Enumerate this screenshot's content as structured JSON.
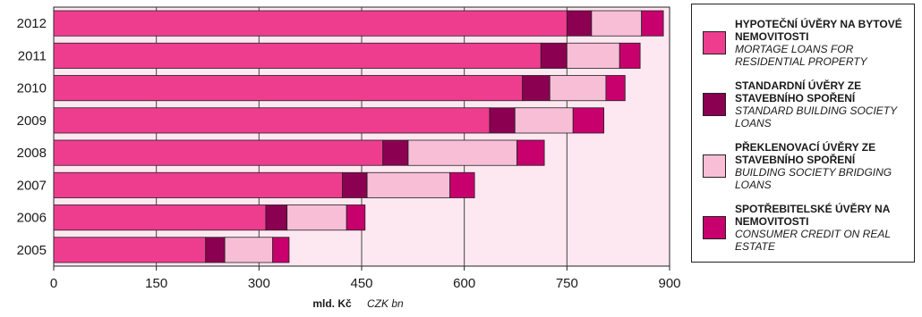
{
  "chart_data": {
    "type": "bar",
    "orientation": "horizontal",
    "stacked": true,
    "categories": [
      "2012",
      "2011",
      "2010",
      "2009",
      "2008",
      "2007",
      "2006",
      "2005"
    ],
    "series": [
      {
        "name": "HYPOTEČNÍ ÚVĚRY NA BYTOVÉ NEMOVITOSTI",
        "name_en": "MORTAGE LOANS FOR RESIDENTIAL PROPERTY",
        "color": "#ee3d8f",
        "values": [
          750,
          712,
          685,
          637,
          481,
          422,
          310,
          222
        ]
      },
      {
        "name": "STANDARDNÍ ÚVĚRY ZE STAVEBNÍHO SPOŘENÍ",
        "name_en": "STANDARD BUILDING SOCIETY LOANS",
        "color": "#8b0051",
        "values": [
          36,
          38,
          40,
          37,
          37,
          36,
          31,
          28
        ]
      },
      {
        "name": "PŘEKLENOVACÍ ÚVĚRY ZE STAVEBNÍHO SPOŘENÍ",
        "name_en": "BUILDING SOCIETY BRIDGING LOANS",
        "color": "#f7bed6",
        "values": [
          73,
          77,
          82,
          85,
          159,
          121,
          87,
          70
        ]
      },
      {
        "name": "SPOTŘEBITELSKÉ ÚVĚRY NA NEMOVITOSTI",
        "name_en": "CONSUMER CREDIT ON REAL ESTATE",
        "color": "#c7006d",
        "values": [
          32,
          30,
          28,
          45,
          40,
          36,
          27,
          24
        ]
      }
    ],
    "xlim": [
      0,
      900
    ],
    "xticks": [
      "0",
      "150",
      "300",
      "450",
      "600",
      "750",
      "900"
    ],
    "xlabel": "mld. Kč",
    "xlabel_en": "CZK bn",
    "grid": "vertical",
    "background": "#fde8f1",
    "legend_position": "right"
  }
}
